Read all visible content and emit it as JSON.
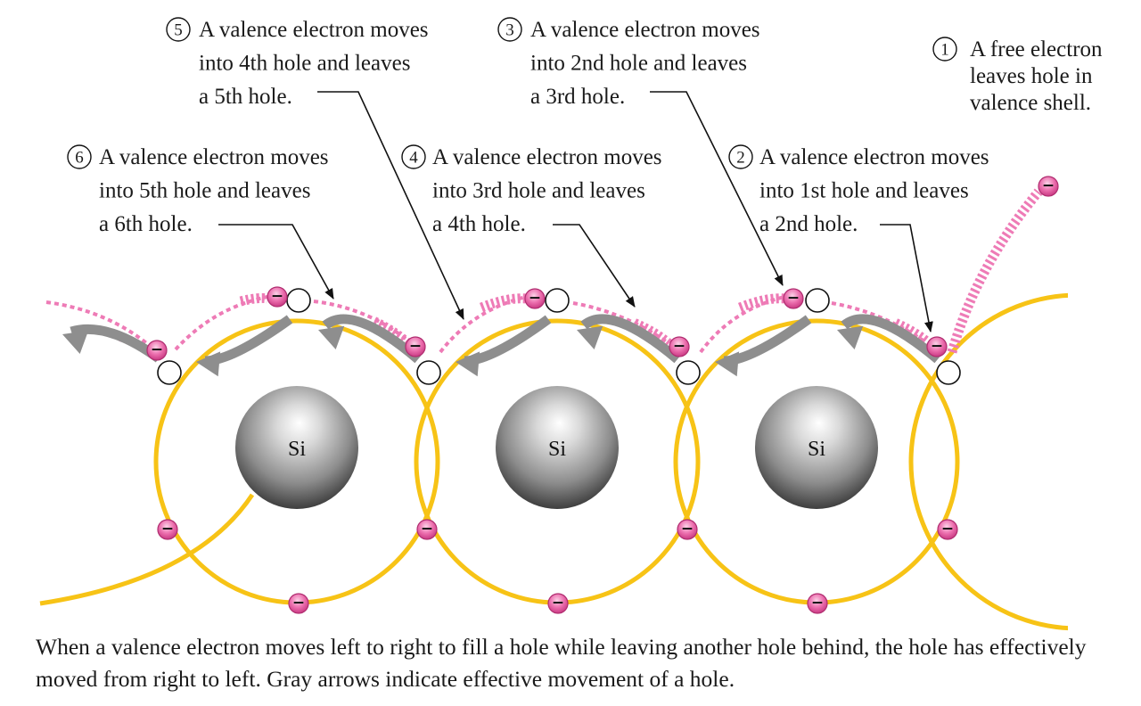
{
  "notes": [
    {
      "number": "1",
      "lines": [
        "A free electron",
        "leaves hole in",
        "valence shell."
      ]
    },
    {
      "number": "2",
      "lines": [
        "A valence electron moves",
        "into 1st hole and leaves",
        "a 2nd hole."
      ]
    },
    {
      "number": "3",
      "lines": [
        "A valence electron moves",
        "into 2nd hole and leaves",
        "a 3rd hole."
      ]
    },
    {
      "number": "4",
      "lines": [
        "A valence electron moves",
        "into 3rd hole and leaves",
        "a 4th hole."
      ]
    },
    {
      "number": "5",
      "lines": [
        "A valence electron moves",
        "into 4th hole and leaves",
        "a 5th hole."
      ]
    },
    {
      "number": "6",
      "lines": [
        "A valence electron moves",
        "into 5th hole and leaves",
        "a 6th hole."
      ]
    }
  ],
  "atoms": [
    {
      "label": "Si"
    },
    {
      "label": "Si"
    },
    {
      "label": "Si"
    }
  ],
  "electron_symbol": "−",
  "caption": "When a valence electron moves left to right to fill a hole while leaving another hole behind, the hole has effectively moved from right to left. Gray arrows indicate effective movement of a hole.",
  "colors": {
    "orbit": "#F7C316",
    "electron": "#E8559A",
    "trail": "#EE7BB6",
    "hole_arrow": "#8E8E8E",
    "pointer": "#111111"
  }
}
